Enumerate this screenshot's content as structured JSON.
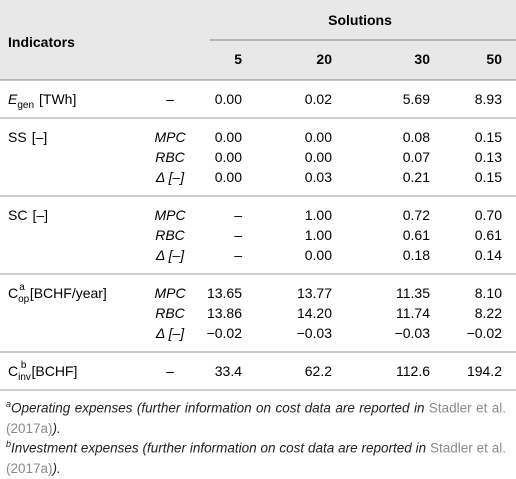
{
  "header": {
    "indicators": "Indicators",
    "solutions": "Solutions",
    "columns": [
      "5",
      "20",
      "30",
      "50"
    ]
  },
  "rows": [
    {
      "indicator": {
        "symbol": "E",
        "subscript": "gen",
        "unit": "[TWh]"
      },
      "subrows": [
        {
          "method": "–",
          "values": [
            "0.00",
            "0.02",
            "5.69",
            "8.93"
          ]
        }
      ]
    },
    {
      "indicator": {
        "symbol": "SS",
        "unit": "[–]"
      },
      "subrows": [
        {
          "method": "MPC",
          "values": [
            "0.00",
            "0.00",
            "0.08",
            "0.15"
          ]
        },
        {
          "method": "RBC",
          "values": [
            "0.00",
            "0.00",
            "0.07",
            "0.13"
          ]
        },
        {
          "method": "Δ [–]",
          "values": [
            "0.00",
            "0.03",
            "0.21",
            "0.15"
          ]
        }
      ]
    },
    {
      "indicator": {
        "symbol": "SC",
        "unit": "[–]"
      },
      "subrows": [
        {
          "method": "MPC",
          "values": [
            "–",
            "1.00",
            "0.72",
            "0.70"
          ]
        },
        {
          "method": "RBC",
          "values": [
            "–",
            "1.00",
            "0.61",
            "0.61"
          ]
        },
        {
          "method": "Δ [–]",
          "values": [
            "–",
            "0.00",
            "0.18",
            "0.14"
          ]
        }
      ]
    },
    {
      "indicator": {
        "symbol": "C",
        "subscript": "op",
        "superscript": "a",
        "unit": "[BCHF/year]"
      },
      "subrows": [
        {
          "method": "MPC",
          "values": [
            "13.65",
            "13.77",
            "11.35",
            "8.10"
          ]
        },
        {
          "method": "RBC",
          "values": [
            "13.86",
            "14.20",
            "11.74",
            "8.22"
          ]
        },
        {
          "method": "Δ [–]",
          "values": [
            "−0.02",
            "−0.03",
            "−0.03",
            "−0.02"
          ]
        }
      ]
    },
    {
      "indicator": {
        "symbol": "C",
        "subscript": "inv",
        "superscript": "b",
        "unit": "[BCHF]"
      },
      "subrows": [
        {
          "method": "–",
          "values": [
            "33.4",
            "62.2",
            "112.6",
            "194.2"
          ]
        }
      ]
    }
  ],
  "footnotes": [
    {
      "marker": "a",
      "text": "Operating expenses (further information on cost data are reported in",
      "link": "Stadler et al. (2017a)",
      "end": ")."
    },
    {
      "marker": "b",
      "text": "Investment expenses (further information on cost data are reported in",
      "link": "Stadler et al. (2017a)",
      "end": ")."
    }
  ]
}
